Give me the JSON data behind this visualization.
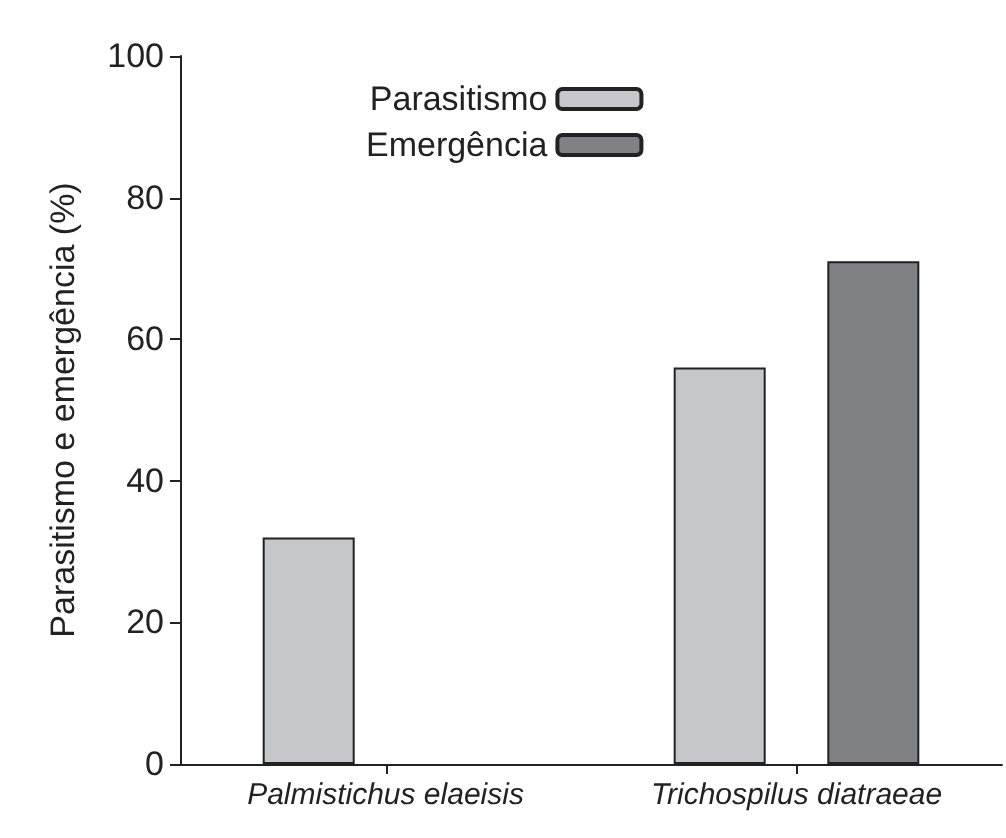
{
  "chart_data": {
    "type": "bar",
    "ylabel": "Parasitismo e emergência (%)",
    "categories": [
      "Palmistichus elaeisis",
      "Trichospilus diatraeae"
    ],
    "series": [
      {
        "name": "Parasitismo",
        "color": "#c6c7c9",
        "values": [
          32,
          56
        ]
      },
      {
        "name": "Emergência",
        "color": "#808184",
        "values": [
          null,
          71
        ]
      }
    ],
    "ylim": [
      0,
      100
    ],
    "yticks": [
      0,
      20,
      40,
      60,
      80,
      100
    ],
    "grid": false,
    "legend": "top"
  }
}
